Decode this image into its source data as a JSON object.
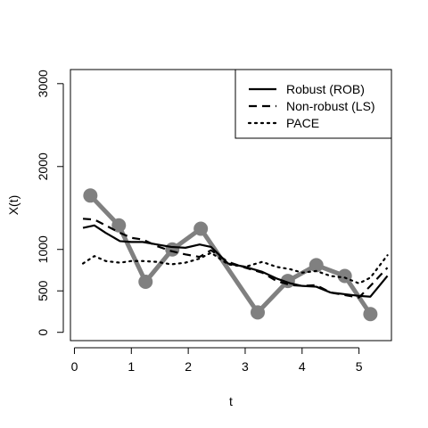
{
  "chart_data": {
    "type": "line",
    "title": "",
    "xlabel": "t",
    "ylabel": "X(t)",
    "xlim": [
      -0.07,
      5.57
    ],
    "ylim": [
      -100,
      3170
    ],
    "x_ticks": [
      "0",
      "1",
      "2",
      "3",
      "4",
      "5"
    ],
    "y_ticks": [
      "0",
      "500",
      "1000",
      "2000",
      "3000"
    ],
    "legend_position": "top-right",
    "series": [
      {
        "name": "Robust (ROB)",
        "style": "solid",
        "color": "#000000",
        "x": [
          0.15,
          0.35,
          0.55,
          0.8,
          1.0,
          1.2,
          1.45,
          1.7,
          1.95,
          2.2,
          2.4,
          2.7,
          3.0,
          3.3,
          3.55,
          3.8,
          4.0,
          4.25,
          4.5,
          4.75,
          5.0,
          5.2,
          5.5
        ],
        "y": [
          1260,
          1290,
          1200,
          1100,
          1090,
          1090,
          1060,
          1030,
          1020,
          1060,
          1030,
          830,
          790,
          730,
          650,
          590,
          560,
          550,
          480,
          460,
          440,
          430,
          680
        ]
      },
      {
        "name": "Non-robust (LS)",
        "style": "dashed",
        "color": "#000000",
        "x": [
          0.15,
          0.35,
          0.55,
          0.8,
          1.0,
          1.2,
          1.45,
          1.7,
          1.95,
          2.2,
          2.4,
          2.7,
          3.0,
          3.3,
          3.55,
          3.8,
          4.0,
          4.25,
          4.5,
          4.75,
          5.0,
          5.2,
          5.5
        ],
        "y": [
          1370,
          1360,
          1290,
          1200,
          1140,
          1120,
          1040,
          980,
          940,
          910,
          990,
          850,
          780,
          720,
          620,
          570,
          560,
          570,
          480,
          450,
          420,
          560,
          780
        ]
      },
      {
        "name": "PACE",
        "style": "dotted",
        "color": "#000000",
        "x": [
          0.15,
          0.35,
          0.55,
          0.8,
          1.0,
          1.2,
          1.45,
          1.7,
          1.95,
          2.2,
          2.4,
          2.7,
          3.0,
          3.3,
          3.55,
          3.8,
          4.0,
          4.25,
          4.5,
          4.75,
          5.0,
          5.2,
          5.5
        ],
        "y": [
          830,
          920,
          860,
          840,
          860,
          860,
          850,
          820,
          840,
          890,
          960,
          820,
          790,
          850,
          790,
          760,
          720,
          740,
          680,
          660,
          590,
          660,
          930
        ]
      },
      {
        "name": "",
        "style": "points",
        "color": "#808080",
        "x": [
          0.28,
          0.78,
          1.25,
          1.72,
          2.22,
          3.22,
          3.75,
          4.25,
          4.75,
          5.2
        ],
        "y": [
          1650,
          1290,
          610,
          1000,
          1250,
          240,
          620,
          810,
          680,
          220
        ]
      }
    ]
  }
}
